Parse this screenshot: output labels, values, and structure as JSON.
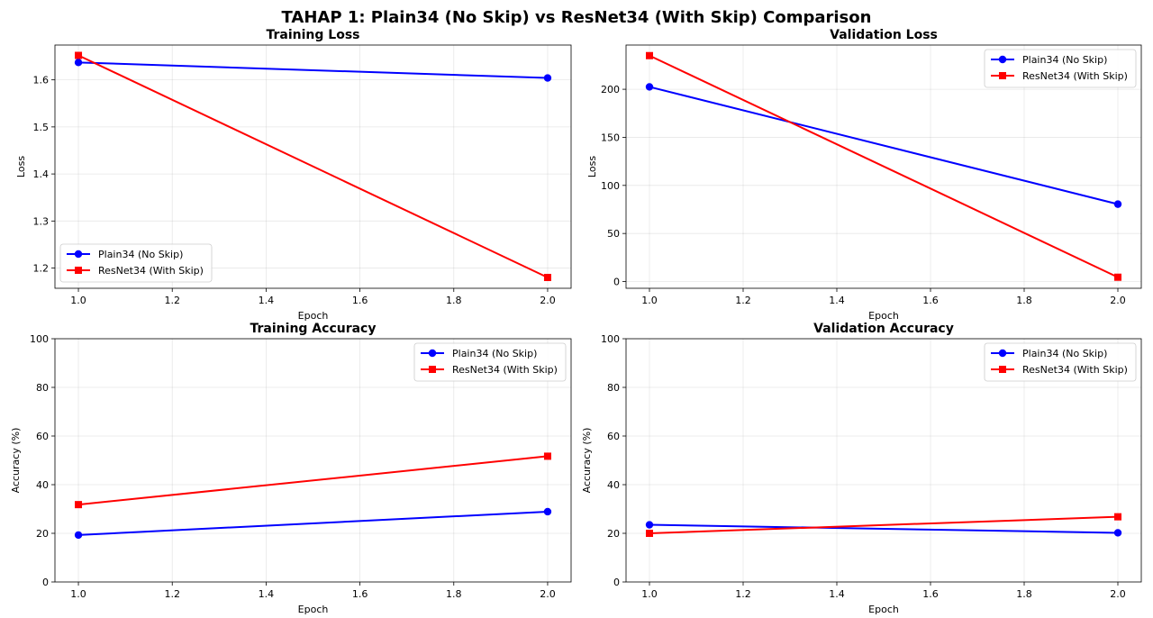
{
  "figure_title": "TAHAP 1: Plain34 (No Skip) vs ResNet34 (With Skip) Comparison",
  "colors": {
    "plain": "#0000ff",
    "resnet": "#ff0000"
  },
  "chart_data": [
    {
      "type": "line",
      "title": "Training Loss",
      "xlabel": "Epoch",
      "ylabel": "Loss",
      "x": [
        1.0,
        2.0
      ],
      "xlim": [
        0.95,
        2.05
      ],
      "ylim": [
        1.157,
        1.674
      ],
      "xticks": [
        "1.0",
        "1.2",
        "1.4",
        "1.6",
        "1.8",
        "2.0"
      ],
      "yticks": [
        "1.2",
        "1.3",
        "1.4",
        "1.5",
        "1.6"
      ],
      "grid": true,
      "legend_position": "lower-left",
      "series": [
        {
          "name": "Plain34 (No Skip)",
          "values": [
            1.637,
            1.604
          ],
          "color": "#0000ff",
          "marker": "circle"
        },
        {
          "name": "ResNet34 (With Skip)",
          "values": [
            1.652,
            1.18
          ],
          "color": "#ff0000",
          "marker": "square"
        }
      ]
    },
    {
      "type": "line",
      "title": "Validation Loss",
      "xlabel": "Epoch",
      "ylabel": "Loss",
      "x": [
        1.0,
        2.0
      ],
      "xlim": [
        0.95,
        2.05
      ],
      "ylim": [
        -7.0,
        246.0
      ],
      "xticks": [
        "1.0",
        "1.2",
        "1.4",
        "1.6",
        "1.8",
        "2.0"
      ],
      "yticks": [
        "0",
        "50",
        "100",
        "150",
        "200"
      ],
      "grid": true,
      "legend_position": "upper-right",
      "series": [
        {
          "name": "Plain34 (No Skip)",
          "values": [
            202.5,
            80.5
          ],
          "color": "#0000ff",
          "marker": "circle"
        },
        {
          "name": "ResNet34 (With Skip)",
          "values": [
            235.0,
            4.5
          ],
          "color": "#ff0000",
          "marker": "square"
        }
      ]
    },
    {
      "type": "line",
      "title": "Training Accuracy",
      "xlabel": "Epoch",
      "ylabel": "Accuracy (%)",
      "x": [
        1.0,
        2.0
      ],
      "xlim": [
        0.95,
        2.05
      ],
      "ylim": [
        0,
        100
      ],
      "xticks": [
        "1.0",
        "1.2",
        "1.4",
        "1.6",
        "1.8",
        "2.0"
      ],
      "yticks": [
        "0",
        "20",
        "40",
        "60",
        "80",
        "100"
      ],
      "grid": true,
      "legend_position": "upper-right",
      "series": [
        {
          "name": "Plain34 (No Skip)",
          "values": [
            19.3,
            28.9
          ],
          "color": "#0000ff",
          "marker": "circle"
        },
        {
          "name": "ResNet34 (With Skip)",
          "values": [
            31.8,
            51.7
          ],
          "color": "#ff0000",
          "marker": "square"
        }
      ]
    },
    {
      "type": "line",
      "title": "Validation Accuracy",
      "xlabel": "Epoch",
      "ylabel": "Accuracy (%)",
      "x": [
        1.0,
        2.0
      ],
      "xlim": [
        0.95,
        2.05
      ],
      "ylim": [
        0,
        100
      ],
      "xticks": [
        "1.0",
        "1.2",
        "1.4",
        "1.6",
        "1.8",
        "2.0"
      ],
      "yticks": [
        "0",
        "20",
        "40",
        "60",
        "80",
        "100"
      ],
      "grid": true,
      "legend_position": "upper-right",
      "series": [
        {
          "name": "Plain34 (No Skip)",
          "values": [
            23.5,
            20.2
          ],
          "color": "#0000ff",
          "marker": "circle"
        },
        {
          "name": "ResNet34 (With Skip)",
          "values": [
            20.0,
            26.8
          ],
          "color": "#ff0000",
          "marker": "square"
        }
      ]
    }
  ]
}
